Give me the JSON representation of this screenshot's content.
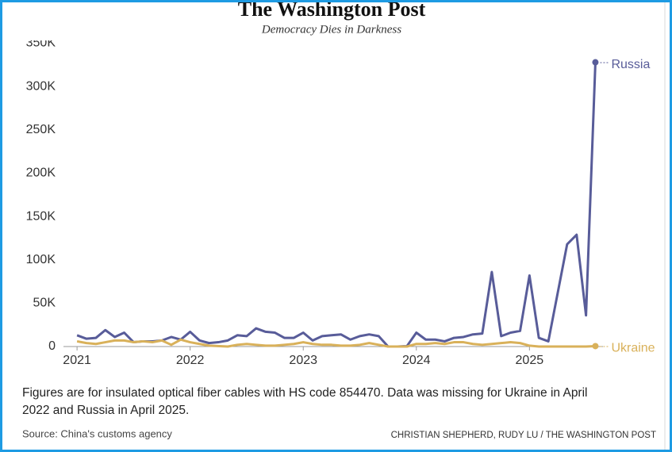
{
  "header": {
    "logo": "The Washington Post",
    "tagline": "Democracy Dies in Darkness"
  },
  "chart_data": {
    "type": "line",
    "note": "Figures are for insulated optical fiber cables with HS code 854470. Data was missing for Ukraine in April 2022 and Russia in April 2025.",
    "source": "Source: China's customs agency",
    "credit": "CHRISTIAN SHEPHERD, RUDY LU / THE WASHINGTON POST",
    "xlim": [
      2020.88,
      2025.65
    ],
    "xticks": [
      2021,
      2022,
      2023,
      2024,
      2025
    ],
    "ylim": [
      0,
      350000
    ],
    "yticks": [
      0,
      {
        "value": 50000,
        "label": "50K"
      },
      {
        "value": 100000,
        "label": "100K"
      },
      {
        "value": 150000,
        "label": "150K"
      },
      {
        "value": 200000,
        "label": "200K"
      },
      {
        "value": 250000,
        "label": "250K"
      },
      {
        "value": 300000,
        "label": "300K"
      },
      {
        "value": 350000,
        "label": "350K"
      }
    ],
    "grid": false,
    "series": [
      {
        "name": "Russia",
        "color": "#585c99",
        "x": [
          2021,
          2021.083,
          2021.167,
          2021.25,
          2021.333,
          2021.417,
          2021.5,
          2021.583,
          2021.667,
          2021.75,
          2021.833,
          2021.917,
          2022,
          2022.083,
          2022.167,
          2022.25,
          2022.333,
          2022.417,
          2022.5,
          2022.583,
          2022.667,
          2022.75,
          2022.833,
          2022.917,
          2023,
          2023.083,
          2023.167,
          2023.25,
          2023.333,
          2023.417,
          2023.5,
          2023.583,
          2023.667,
          2023.75,
          2023.833,
          2023.917,
          2024,
          2024.083,
          2024.167,
          2024.25,
          2024.333,
          2024.417,
          2024.5,
          2024.583,
          2024.667,
          2024.75,
          2024.833,
          2024.917,
          2025,
          2025.083,
          2025.167,
          2025.333,
          2025.417,
          2025.5,
          2025.583
        ],
        "values": [
          13000,
          9000,
          10000,
          19000,
          11000,
          16000,
          5000,
          6000,
          6000,
          7000,
          11000,
          8000,
          17000,
          7000,
          4000,
          5000,
          7000,
          13000,
          12000,
          21000,
          17000,
          16000,
          10000,
          10000,
          16000,
          7000,
          12000,
          13000,
          14000,
          8000,
          12000,
          14000,
          12000,
          0,
          0,
          500,
          16000,
          8000,
          8000,
          6000,
          10000,
          11000,
          14000,
          15000,
          86000,
          12000,
          16000,
          18000,
          82000,
          10000,
          6000,
          118000,
          129000,
          36000,
          328000
        ]
      },
      {
        "name": "Ukraine",
        "color": "#d9b15a",
        "x": [
          2021,
          2021.083,
          2021.167,
          2021.25,
          2021.333,
          2021.417,
          2021.5,
          2021.583,
          2021.667,
          2021.75,
          2021.833,
          2021.917,
          2022,
          2022.083,
          2022.167,
          2022.333,
          2022.417,
          2022.5,
          2022.583,
          2022.667,
          2022.75,
          2022.833,
          2022.917,
          2023,
          2023.083,
          2023.167,
          2023.25,
          2023.333,
          2023.417,
          2023.5,
          2023.583,
          2023.667,
          2023.75,
          2023.833,
          2023.917,
          2024,
          2024.083,
          2024.167,
          2024.25,
          2024.333,
          2024.417,
          2024.5,
          2024.583,
          2024.667,
          2024.75,
          2024.833,
          2024.917,
          2025,
          2025.083,
          2025.167,
          2025.25,
          2025.333,
          2025.417,
          2025.5,
          2025.583
        ],
        "values": [
          6000,
          4000,
          3000,
          5000,
          7000,
          7000,
          5000,
          6000,
          5000,
          7000,
          2000,
          8000,
          5000,
          3000,
          1000,
          0,
          2000,
          3000,
          2000,
          1000,
          1000,
          2000,
          3000,
          5000,
          3000,
          2000,
          2000,
          1000,
          1000,
          2000,
          4000,
          2000,
          0,
          0,
          0,
          3000,
          3000,
          4000,
          3000,
          5000,
          5000,
          3000,
          2000,
          3000,
          4000,
          5000,
          4000,
          1000,
          0,
          0,
          0,
          0,
          0,
          0,
          500
        ]
      }
    ]
  }
}
